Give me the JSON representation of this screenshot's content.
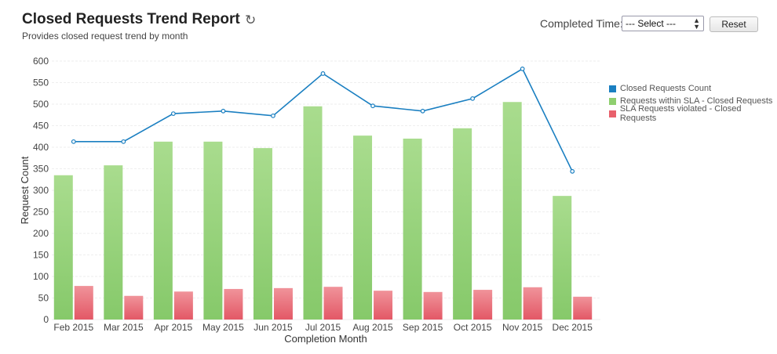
{
  "header": {
    "title": "Closed Requests Trend Report",
    "subtitle": "Provides closed request trend by month",
    "refresh_icon": "refresh-icon"
  },
  "filter": {
    "label": "Completed Time:",
    "select_value": "--- Select ---",
    "reset_label": "Reset"
  },
  "colors": {
    "count": "#1a7fc1",
    "within": "#8fcf6f",
    "violated": "#e8606c"
  },
  "chart_data": {
    "type": "bar",
    "title": "",
    "xlabel": "Completion Month",
    "ylabel": "Request Count",
    "ylim": [
      0,
      600
    ],
    "yticks": [
      0,
      50,
      100,
      150,
      200,
      250,
      300,
      350,
      400,
      450,
      500,
      550,
      600
    ],
    "categories": [
      "Feb 2015",
      "Mar 2015",
      "Apr 2015",
      "May 2015",
      "Jun 2015",
      "Jul 2015",
      "Aug 2015",
      "Sep 2015",
      "Oct 2015",
      "Nov 2015",
      "Dec 2015"
    ],
    "series": [
      {
        "name": "Closed Requests Count",
        "type": "line",
        "values": [
          413,
          413,
          478,
          484,
          473,
          571,
          496,
          484,
          513,
          582,
          344
        ]
      },
      {
        "name": "Requests within SLA - Closed Requests",
        "type": "bar",
        "values": [
          335,
          358,
          413,
          413,
          398,
          495,
          427,
          420,
          444,
          505,
          287
        ]
      },
      {
        "name": "SLA Requests violated - Closed Requests",
        "type": "bar",
        "values": [
          78,
          55,
          65,
          71,
          73,
          76,
          67,
          64,
          69,
          75,
          53
        ]
      }
    ],
    "grid": true,
    "legend": "right"
  }
}
